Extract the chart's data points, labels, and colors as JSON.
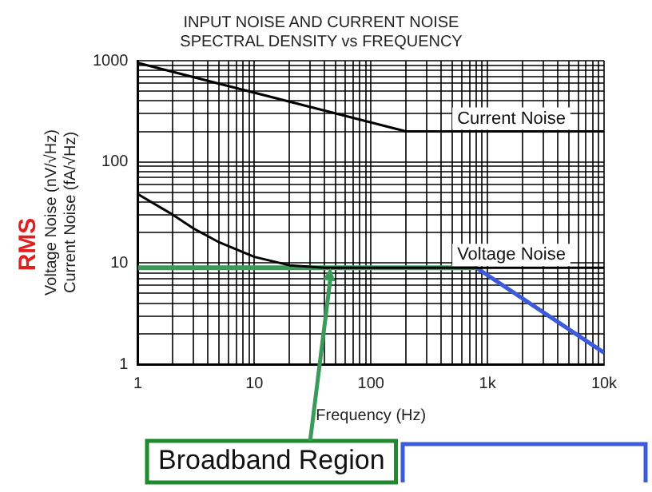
{
  "chart_data": {
    "type": "line",
    "title": "INPUT NOISE AND CURRENT NOISE\nSPECTRAL DENSITY vs FREQUENCY",
    "xlabel": "Frequency (Hz)",
    "ylabel": "Voltage Noise (nV/√Hz)\nCurrent Noise (fA/√Hz)",
    "log": "xy",
    "grid": true,
    "legend": false,
    "marker": "none",
    "line_style": "solid",
    "xlim": [
      1,
      10000
    ],
    "ylim": [
      1,
      1000
    ],
    "xticks": [
      1,
      {
        "value": 2,
        "label": null
      },
      {
        "value": 3,
        "label": null
      },
      {
        "value": 4,
        "label": null
      },
      {
        "value": 5,
        "label": null
      },
      {
        "value": 6,
        "label": null
      },
      {
        "value": 7,
        "label": null
      },
      {
        "value": 8,
        "label": null
      },
      {
        "value": 9,
        "label": null
      },
      10,
      {
        "value": 20,
        "label": null
      },
      {
        "value": 30,
        "label": null
      },
      {
        "value": 40,
        "label": null
      },
      {
        "value": 50,
        "label": null
      },
      {
        "value": 60,
        "label": null
      },
      {
        "value": 70,
        "label": null
      },
      {
        "value": 80,
        "label": null
      },
      {
        "value": 90,
        "label": null
      },
      100,
      {
        "value": 200,
        "label": null
      },
      {
        "value": 300,
        "label": null
      },
      {
        "value": 400,
        "label": null
      },
      {
        "value": 500,
        "label": null
      },
      {
        "value": 600,
        "label": null
      },
      {
        "value": 700,
        "label": null
      },
      {
        "value": 800,
        "label": null
      },
      {
        "value": 900,
        "label": null
      },
      {
        "value": 1000,
        "label": "1k"
      },
      {
        "value": 2000,
        "label": null
      },
      {
        "value": 3000,
        "label": null
      },
      {
        "value": 4000,
        "label": null
      },
      {
        "value": 5000,
        "label": null
      },
      {
        "value": 6000,
        "label": null
      },
      {
        "value": 7000,
        "label": null
      },
      {
        "value": 8000,
        "label": null
      },
      {
        "value": 9000,
        "label": null
      },
      {
        "value": 10000,
        "label": "10k"
      }
    ],
    "yticks": [
      1,
      {
        "value": 2,
        "label": null
      },
      {
        "value": 3,
        "label": null
      },
      {
        "value": 4,
        "label": null
      },
      {
        "value": 5,
        "label": null
      },
      {
        "value": 6,
        "label": null
      },
      {
        "value": 7,
        "label": null
      },
      {
        "value": 8,
        "label": null
      },
      {
        "value": 9,
        "label": null
      },
      10,
      {
        "value": 20,
        "label": null
      },
      {
        "value": 30,
        "label": null
      },
      {
        "value": 40,
        "label": null
      },
      {
        "value": 50,
        "label": null
      },
      {
        "value": 60,
        "label": null
      },
      {
        "value": 70,
        "label": null
      },
      {
        "value": 80,
        "label": null
      },
      {
        "value": 90,
        "label": null
      },
      100,
      {
        "value": 200,
        "label": null
      },
      {
        "value": 300,
        "label": null
      },
      {
        "value": 400,
        "label": null
      },
      {
        "value": 500,
        "label": null
      },
      {
        "value": 600,
        "label": null
      },
      {
        "value": 700,
        "label": null
      },
      {
        "value": 800,
        "label": null
      },
      {
        "value": 900,
        "label": null
      },
      1000
    ],
    "series": [
      {
        "name": "Current Noise",
        "color": "#000000",
        "x": [
          1,
          200,
          10000
        ],
        "values": [
          950,
          200,
          200
        ]
      },
      {
        "name": "Voltage Noise",
        "color": "#000000",
        "x": [
          1,
          2,
          3,
          5,
          10,
          20,
          40,
          10000
        ],
        "values": [
          48,
          30,
          22,
          16,
          11.5,
          9.5,
          9,
          9
        ]
      },
      {
        "color": "#3a9a5a",
        "x": [
          1,
          800
        ],
        "values": [
          9,
          9
        ]
      },
      {
        "color": "#3b5bdb",
        "x": [
          800,
          10000
        ],
        "values": [
          9,
          1.3
        ]
      }
    ],
    "annotations": [
      "RMS",
      {
        "text": "Broadband Region",
        "x": 45,
        "y": 9
      }
    ]
  }
}
